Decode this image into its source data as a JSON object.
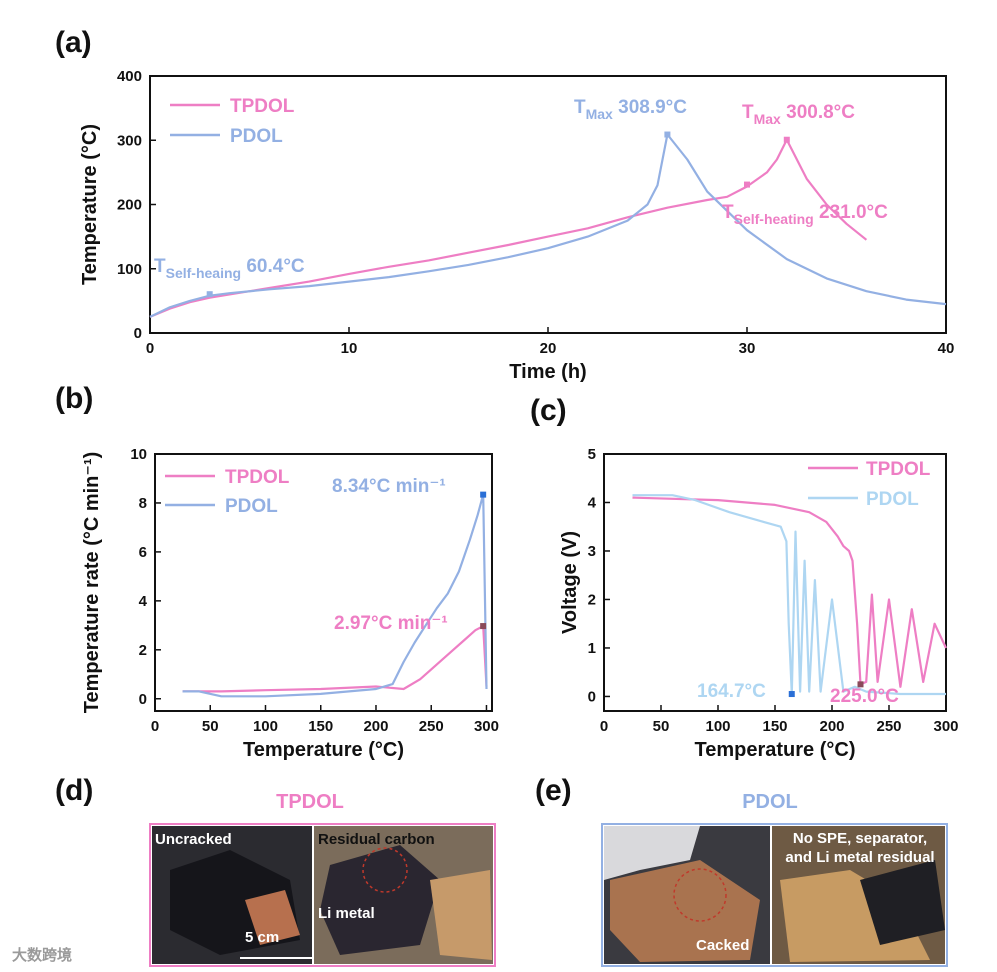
{
  "colors": {
    "tpdol": "#ee7ec4",
    "pdol": "#93b0e3",
    "pdol_light": "#aed6f2"
  },
  "chart_data": [
    {
      "panel": "(a)",
      "type": "line",
      "xlabel": "Time (h)",
      "ylabel": "Temperature (°C)",
      "xlim": [
        0,
        40
      ],
      "ylim": [
        0,
        400
      ],
      "xticks": [
        "0",
        "10",
        "20",
        "30",
        "40"
      ],
      "yticks": [
        "0",
        "100",
        "200",
        "300",
        "400"
      ],
      "series": [
        {
          "name": "TPDOL",
          "color": "#ee7ec4",
          "x": [
            0,
            1,
            2,
            3,
            4,
            6,
            8,
            10,
            12,
            14,
            16,
            18,
            20,
            22,
            24,
            26,
            28,
            29,
            30,
            31,
            31.5,
            32,
            33,
            34,
            35,
            36
          ],
          "y": [
            25,
            38,
            48,
            55,
            60,
            70,
            80,
            92,
            103,
            113,
            125,
            137,
            150,
            163,
            180,
            195,
            207,
            212,
            228,
            250,
            270,
            300.8,
            240,
            200,
            170,
            145
          ]
        },
        {
          "name": "PDOL",
          "color": "#93b0e3",
          "x": [
            0,
            1,
            2,
            3,
            4,
            6,
            8,
            10,
            12,
            14,
            16,
            18,
            20,
            22,
            24,
            25,
            25.5,
            26,
            27,
            28,
            30,
            32,
            34,
            36,
            38,
            40
          ],
          "y": [
            25,
            40,
            50,
            58,
            62,
            68,
            73,
            80,
            87,
            96,
            106,
            118,
            132,
            150,
            175,
            200,
            230,
            308.9,
            270,
            220,
            160,
            115,
            85,
            65,
            52,
            45
          ]
        }
      ],
      "annotations": [
        {
          "label": "T",
          "sub": "Max",
          "value": "308.9°C",
          "x": 26,
          "y": 308.9,
          "series": "PDOL"
        },
        {
          "label": "T",
          "sub": "Max",
          "value": "300.8°C",
          "x": 32,
          "y": 300.8,
          "series": "TPDOL"
        },
        {
          "label": "T",
          "sub": "Self-heaing",
          "value": "60.4°C",
          "x": 3,
          "y": 60.4,
          "series": "PDOL"
        },
        {
          "label": "T",
          "sub": "Self-heating",
          "value": "231.0°C",
          "x": 30,
          "y": 231.0,
          "series": "TPDOL"
        }
      ]
    },
    {
      "panel": "(b)",
      "type": "line",
      "xlabel": "Temperature (°C)",
      "ylabel": "Temperature rate (°C min⁻¹)",
      "xlim": [
        0,
        305
      ],
      "ylim": [
        -0.5,
        10
      ],
      "xticks": [
        "0",
        "50",
        "100",
        "150",
        "200",
        "250",
        "300"
      ],
      "yticks": [
        "0",
        "2",
        "4",
        "6",
        "8",
        "10"
      ],
      "series": [
        {
          "name": "TPDOL",
          "color": "#ee7ec4",
          "x": [
            25,
            40,
            60,
            100,
            150,
            200,
            225,
            240,
            250,
            260,
            270,
            280,
            290,
            297,
            300
          ],
          "y": [
            0.3,
            0.3,
            0.3,
            0.35,
            0.4,
            0.5,
            0.4,
            0.8,
            1.2,
            1.6,
            2.0,
            2.4,
            2.8,
            2.97,
            0.5
          ]
        },
        {
          "name": "PDOL",
          "color": "#93b0e3",
          "x": [
            25,
            40,
            60,
            100,
            150,
            200,
            215,
            225,
            235,
            245,
            255,
            265,
            275,
            285,
            292,
            297,
            300
          ],
          "y": [
            0.3,
            0.3,
            0.1,
            0.1,
            0.2,
            0.4,
            0.6,
            1.5,
            2.3,
            3.0,
            3.7,
            4.3,
            5.2,
            6.5,
            7.5,
            8.34,
            0.4
          ]
        }
      ],
      "annotations": [
        {
          "value": "8.34°C min⁻¹",
          "x": 297,
          "y": 8.34,
          "series": "PDOL"
        },
        {
          "value": "2.97°C min⁻¹",
          "x": 297,
          "y": 2.97,
          "series": "TPDOL"
        }
      ]
    },
    {
      "panel": "(c)",
      "type": "line",
      "xlabel": "Temperature (°C)",
      "ylabel": "Voltage (V)",
      "xlim": [
        0,
        300
      ],
      "ylim": [
        -0.3,
        5
      ],
      "xticks": [
        "0",
        "50",
        "100",
        "150",
        "200",
        "250",
        "300"
      ],
      "yticks": [
        "0",
        "1",
        "2",
        "3",
        "4",
        "5"
      ],
      "series": [
        {
          "name": "TPDOL",
          "color": "#ee7ec4",
          "x": [
            25,
            100,
            150,
            180,
            195,
            205,
            210,
            215,
            218,
            222,
            225,
            230,
            235,
            240,
            250,
            260,
            270,
            280,
            290,
            300
          ],
          "y": [
            4.1,
            4.05,
            3.95,
            3.8,
            3.6,
            3.3,
            3.1,
            3.0,
            2.8,
            1.5,
            0.25,
            0.3,
            2.1,
            0.3,
            2.0,
            0.2,
            1.8,
            0.3,
            1.5,
            1.0
          ]
        },
        {
          "name": "PDOL",
          "color": "#aed6f2",
          "x": [
            25,
            60,
            80,
            110,
            140,
            155,
            160,
            162,
            164.7,
            168,
            172,
            176,
            180,
            185,
            190,
            200,
            210,
            220,
            230,
            260,
            300
          ],
          "y": [
            4.15,
            4.15,
            4.05,
            3.8,
            3.6,
            3.5,
            3.2,
            1.5,
            0.05,
            3.4,
            0.1,
            2.8,
            0.1,
            2.4,
            0.1,
            2.0,
            0.1,
            0.2,
            0.1,
            0.05,
            0.05
          ]
        }
      ],
      "annotations": [
        {
          "value": "164.7°C",
          "x": 164.7,
          "y": 0.05,
          "series": "PDOL"
        },
        {
          "value": "225.0°C",
          "x": 225,
          "y": 0.25,
          "series": "TPDOL"
        }
      ]
    }
  ],
  "panels": {
    "a": "(a)",
    "b": "(b)",
    "c": "(c)",
    "d": "(d)",
    "e": "(e)"
  },
  "photos": {
    "d": {
      "title": "TPDOL",
      "left_label": "Uncracked",
      "right_label": "Residual carbon",
      "metal_label": "Li metal",
      "scale_label": "5 cm"
    },
    "e": {
      "title": "PDOL",
      "crack_label": "Cacked",
      "residue_line1": "No SPE, separator,",
      "residue_line2": "and Li metal residual"
    }
  },
  "watermark": "大数跨境"
}
